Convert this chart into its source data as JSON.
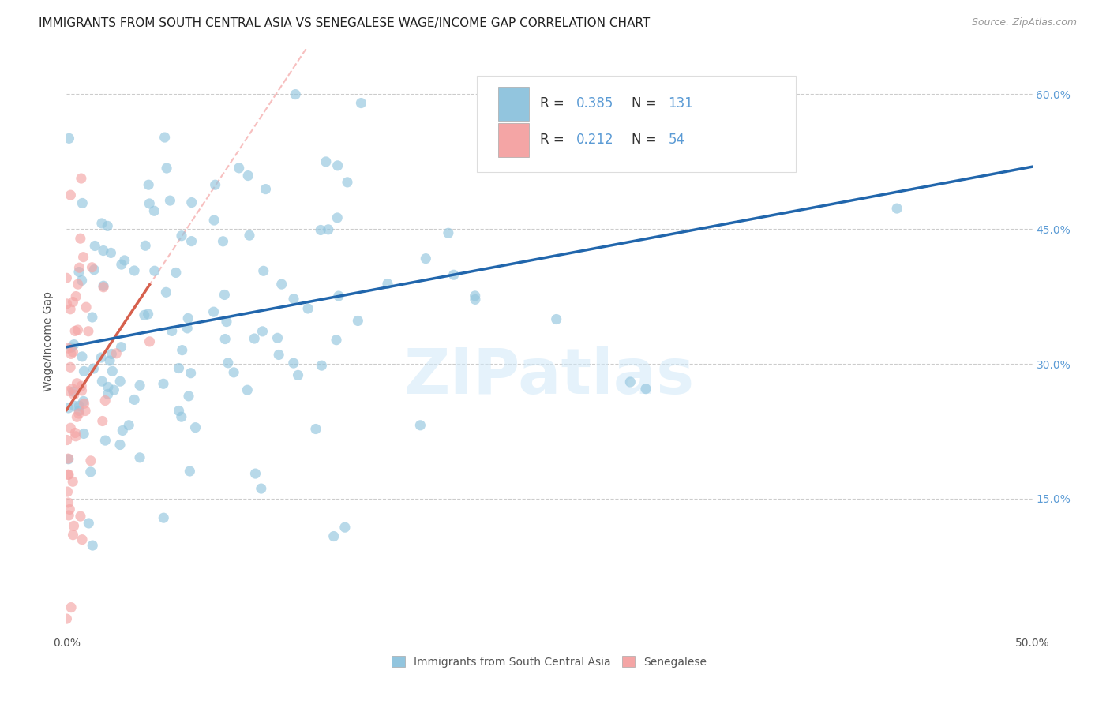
{
  "title": "IMMIGRANTS FROM SOUTH CENTRAL ASIA VS SENEGALESE WAGE/INCOME GAP CORRELATION CHART",
  "source": "Source: ZipAtlas.com",
  "ylabel": "Wage/Income Gap",
  "ytick_labels": [
    "15.0%",
    "30.0%",
    "45.0%",
    "60.0%"
  ],
  "ytick_values": [
    0.15,
    0.3,
    0.45,
    0.6
  ],
  "xlim": [
    0.0,
    0.5
  ],
  "ylim": [
    0.0,
    0.65
  ],
  "legend_label1": "Immigrants from South Central Asia",
  "legend_label2": "Senegalese",
  "legend_R1": "0.385",
  "legend_N1": "131",
  "legend_R2": "0.212",
  "legend_N2": "54",
  "color_blue": "#92c5de",
  "color_pink": "#f4a5a5",
  "line_blue": "#2166ac",
  "line_pink": "#d6604d",
  "dashed_color": "#f4a5a5",
  "watermark": "ZIPatlas",
  "background": "#ffffff",
  "seed": 99,
  "R_blue": 0.385,
  "N_blue": 131,
  "R_pink": 0.212,
  "N_pink": 54,
  "title_fontsize": 11,
  "axis_fontsize": 10,
  "legend_fontsize": 12,
  "marker_size": 90,
  "marker_alpha": 0.65
}
